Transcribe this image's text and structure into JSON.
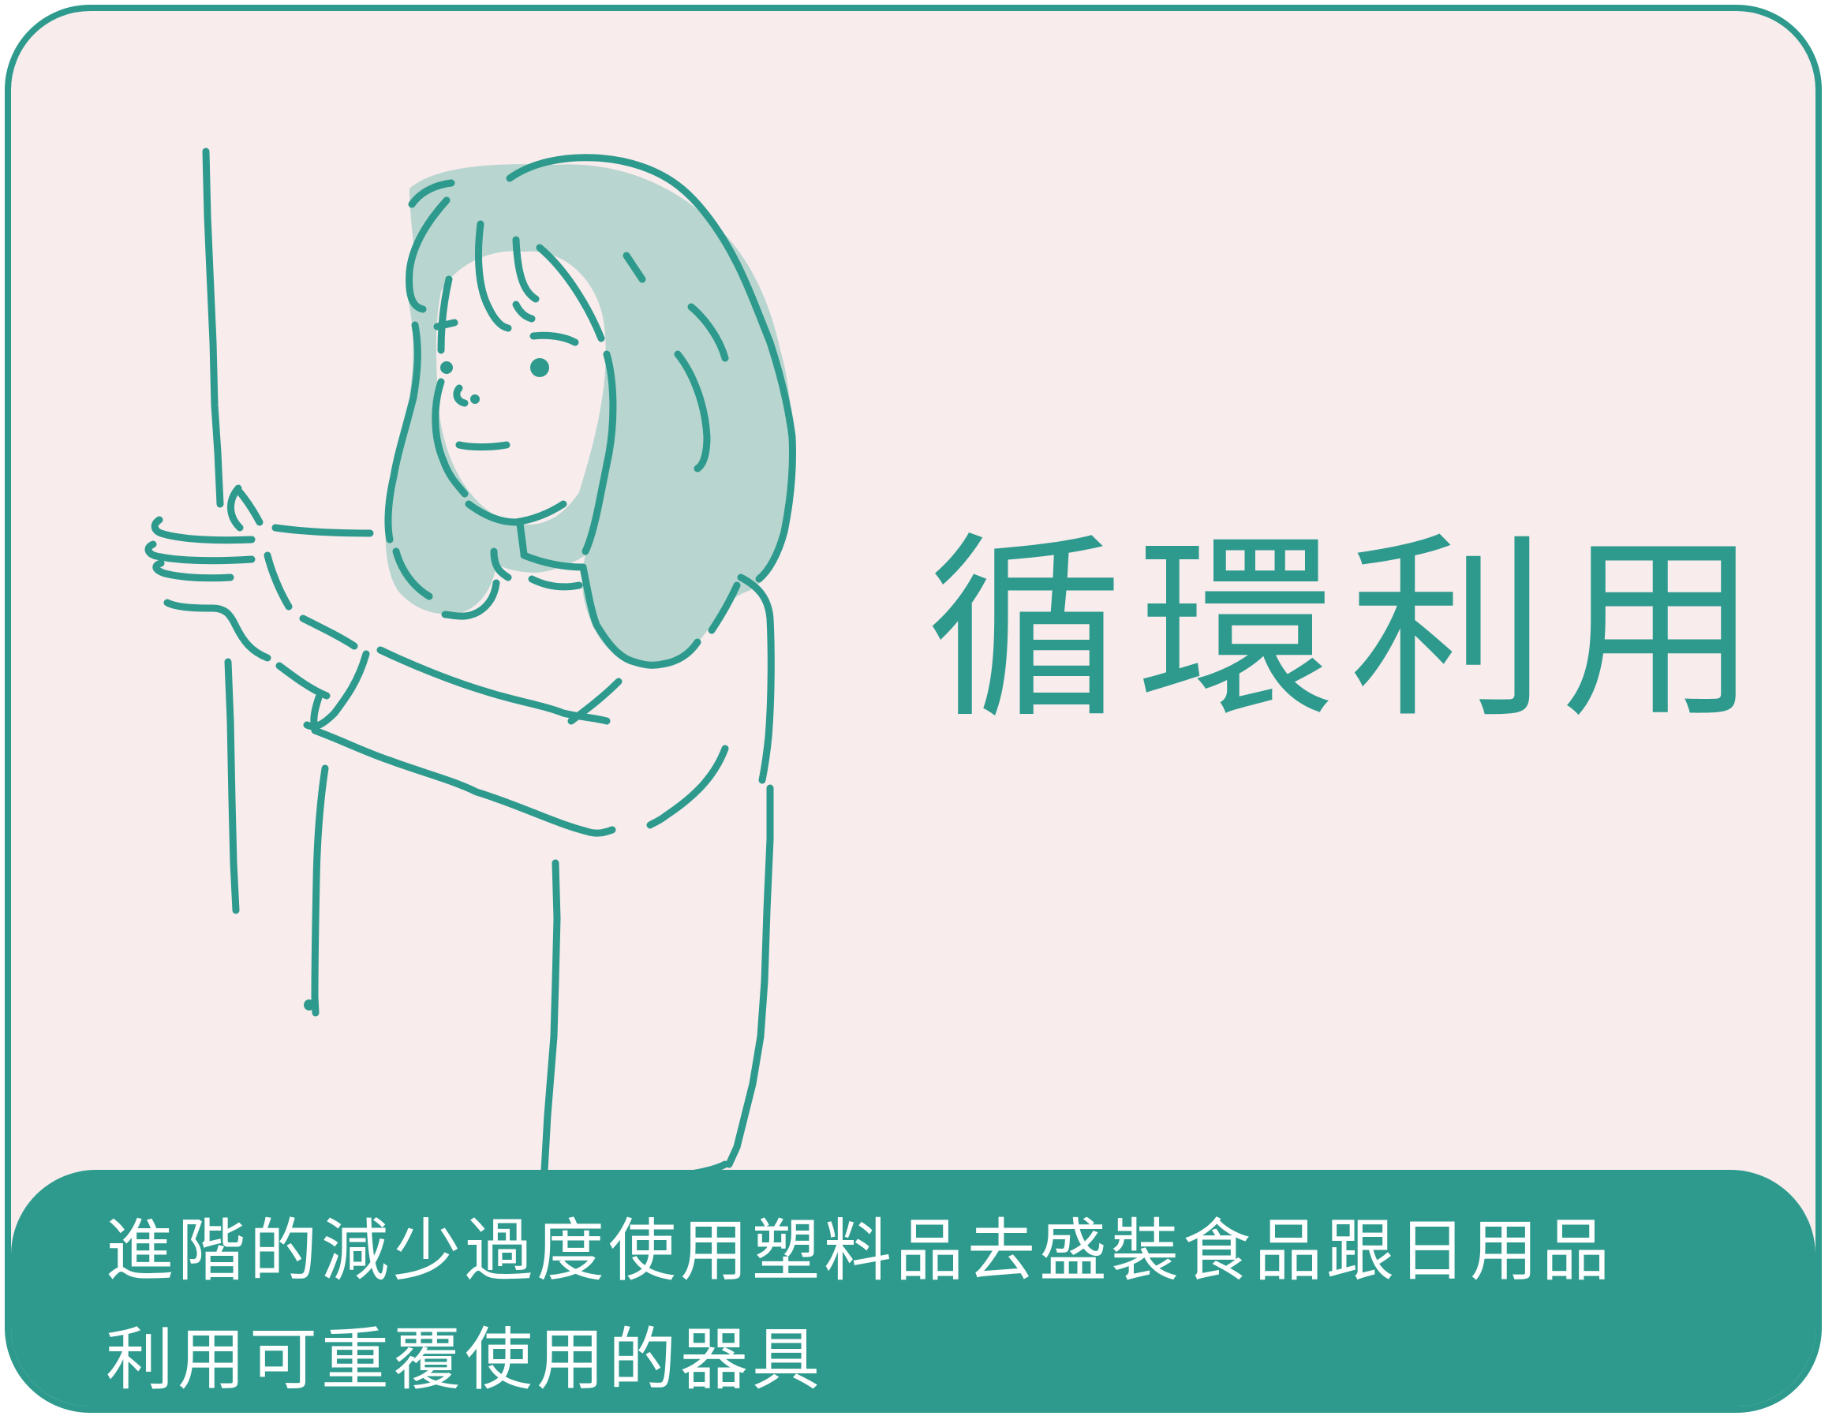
{
  "title": "循環利用",
  "caption": {
    "line1": "進階的減少過度使用塑料品去盛裝食品跟日用品",
    "line2": "利用可重覆使用的器具"
  },
  "colors": {
    "accent": "#2e9a8d",
    "background": "#f8eced",
    "hair": "#b8d5cf",
    "caption_text": "#ffffff"
  },
  "illustration": "woman-holding-pole"
}
